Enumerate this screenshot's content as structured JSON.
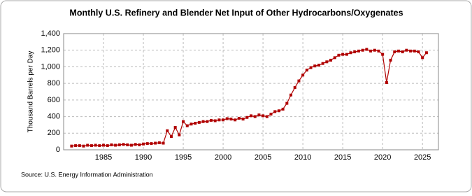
{
  "chart_data": {
    "type": "line",
    "title": "Monthly U.S. Refinery and Blender Net Input of Other Hydrocarbons/Oxygenates",
    "y_label": "Thousand Barrels per Day",
    "source": "Source: U.S. Energy Information Administration",
    "x": [
      1981,
      1981.5,
      1982,
      1982.5,
      1983,
      1983.5,
      1984,
      1984.5,
      1985,
      1985.5,
      1986,
      1986.5,
      1987,
      1987.5,
      1988,
      1988.5,
      1989,
      1989.5,
      1990,
      1990.5,
      1991,
      1991.5,
      1992,
      1992.5,
      1993,
      1993.5,
      1994,
      1994.5,
      1995,
      1995.5,
      1996,
      1996.5,
      1997,
      1997.5,
      1998,
      1998.5,
      1999,
      1999.5,
      2000,
      2000.5,
      2001,
      2001.5,
      2002,
      2002.5,
      2003,
      2003.5,
      2004,
      2004.5,
      2005,
      2005.5,
      2006,
      2006.5,
      2007,
      2007.5,
      2008,
      2008.5,
      2009,
      2009.5,
      2010,
      2010.5,
      2011,
      2011.5,
      2012,
      2012.5,
      2013,
      2013.5,
      2014,
      2014.5,
      2015,
      2015.5,
      2016,
      2016.5,
      2017,
      2017.5,
      2018,
      2018.5,
      2019,
      2019.5,
      2020,
      2020.5,
      2021,
      2021.5,
      2022,
      2022.5,
      2023,
      2023.5,
      2024,
      2024.5,
      2025,
      2025.5
    ],
    "series": [
      {
        "name": "Net Input",
        "color": "#b00000",
        "values": [
          45,
          50,
          50,
          45,
          55,
          50,
          55,
          50,
          55,
          50,
          60,
          55,
          60,
          65,
          60,
          55,
          65,
          60,
          70,
          75,
          75,
          80,
          85,
          80,
          230,
          160,
          270,
          180,
          340,
          290,
          310,
          320,
          330,
          340,
          340,
          355,
          350,
          360,
          360,
          375,
          370,
          360,
          380,
          370,
          390,
          410,
          400,
          420,
          410,
          400,
          430,
          460,
          470,
          490,
          560,
          660,
          750,
          830,
          900,
          960,
          990,
          1010,
          1020,
          1040,
          1060,
          1080,
          1110,
          1140,
          1150,
          1150,
          1170,
          1180,
          1190,
          1200,
          1210,
          1190,
          1200,
          1190,
          1150,
          810,
          1080,
          1180,
          1190,
          1180,
          1200,
          1190,
          1190,
          1180,
          1110,
          1170
        ]
      }
    ],
    "xlim": [
      1980,
      2027
    ],
    "xticks": [
      1985,
      1990,
      1995,
      2000,
      2005,
      2010,
      2015,
      2020,
      2025
    ],
    "ylim": [
      0,
      1400
    ],
    "yticks": [
      0,
      200,
      400,
      600,
      800,
      {
        "value": 1000,
        "label": "1,000"
      },
      {
        "value": 1200,
        "label": "1,200"
      },
      {
        "value": 1400,
        "label": "1,400"
      }
    ],
    "grid": true
  }
}
